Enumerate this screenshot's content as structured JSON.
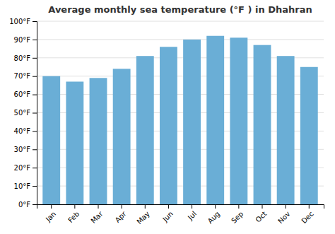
{
  "chart_data": {
    "type": "bar",
    "title": "Average monthly sea temperature (°F ) in Dhahran",
    "categories": [
      "Jan",
      "Feb",
      "Mar",
      "Apr",
      "May",
      "Jun",
      "Jul",
      "Aug",
      "Sep",
      "Oct",
      "Nov",
      "Dec"
    ],
    "values": [
      70,
      67,
      69,
      74,
      81,
      86,
      90,
      92,
      91,
      87,
      81,
      75
    ],
    "color": "#6aaed6",
    "ylim": [
      0,
      100
    ],
    "yticks": [
      {
        "value": 0,
        "label": "0°F"
      },
      {
        "value": 10,
        "label": "10°F"
      },
      {
        "value": 20,
        "label": "20°F"
      },
      {
        "value": 30,
        "label": "30°F"
      },
      {
        "value": 40,
        "label": "40°F"
      },
      {
        "value": 50,
        "label": "50°F"
      },
      {
        "value": 60,
        "label": "60°F"
      },
      {
        "value": 70,
        "label": "70°F"
      },
      {
        "value": 80,
        "label": "80°F"
      },
      {
        "value": 90,
        "label": "90°F"
      },
      {
        "value": 100,
        "label": "100°F"
      }
    ],
    "grid": true
  }
}
